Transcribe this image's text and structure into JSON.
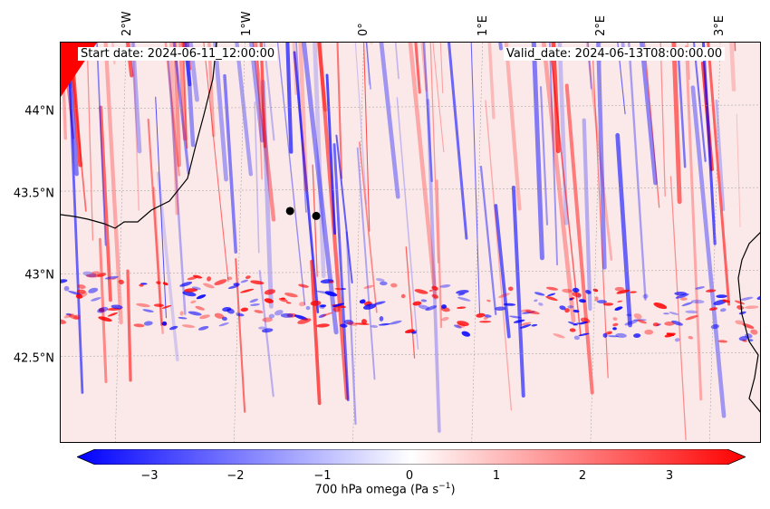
{
  "map": {
    "start_date": "Start date: 2024-06-11_12:00:00",
    "valid_date": "Valid_date: 2024-06-13T08:00:00.00",
    "lat_labels": [
      "44°N",
      "43.5°N",
      "43°N",
      "42.5°N"
    ],
    "lon_labels": [
      "2°W",
      "1°W",
      "0°",
      "1°E",
      "2°E",
      "3°E"
    ],
    "points": [
      {
        "lon": -0.62,
        "lat": 43.38
      },
      {
        "lon": -0.4,
        "lat": 43.35
      }
    ],
    "extent": {
      "lon_min": -2.55,
      "lon_max": 3.35,
      "lat_min": 41.97,
      "lat_max": 44.4
    }
  },
  "colorbar": {
    "label": "700 hPa omega (Pa s",
    "label_sup": "−1",
    "label_end": ")",
    "ticks": [
      "−3",
      "−2",
      "−1",
      "0",
      "1",
      "2",
      "3"
    ],
    "tick_values": [
      -3,
      -2,
      -1,
      0,
      1,
      2,
      3
    ],
    "range": [
      -3.6,
      3.6
    ],
    "colors": {
      "low": "#0000ff",
      "mid": "#ffffff",
      "high": "#ff0000"
    }
  }
}
